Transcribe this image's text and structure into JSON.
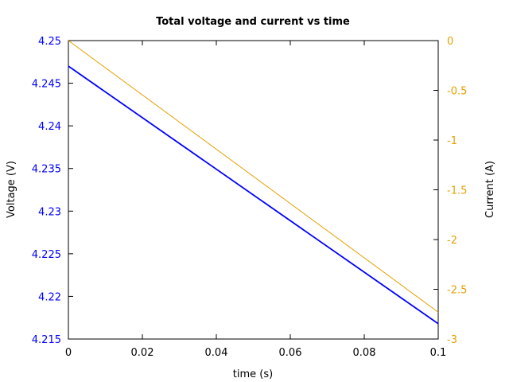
{
  "chart_data": {
    "type": "line",
    "title": "Total voltage and current vs time",
    "xlabel": "time (s)",
    "ylabel": "Voltage (V)",
    "y2label": "Current (A)",
    "xlim": [
      0,
      0.1
    ],
    "ylim": [
      4.215,
      4.25
    ],
    "y2lim": [
      -3,
      0
    ],
    "xticks": [
      "0",
      "0.02",
      "0.04",
      "0.06",
      "0.08",
      "0.1"
    ],
    "yticks": [
      "4.215",
      "4.22",
      "4.225",
      "4.23",
      "4.235",
      "4.24",
      "4.245",
      "4.25"
    ],
    "y2ticks": [
      "-3",
      "-2.5",
      "-2",
      "-1.5",
      "-1",
      "-0.5",
      "0"
    ],
    "grid": false,
    "colors": {
      "voltage": "#0000ff",
      "current": "#e6a000",
      "axis": "#000000"
    },
    "series": [
      {
        "axis": "left",
        "x": [
          0,
          0.1
        ],
        "values": [
          4.247,
          4.2168
        ]
      },
      {
        "axis": "right",
        "x": [
          0,
          0.1
        ],
        "values": [
          0,
          -2.73
        ]
      }
    ]
  }
}
